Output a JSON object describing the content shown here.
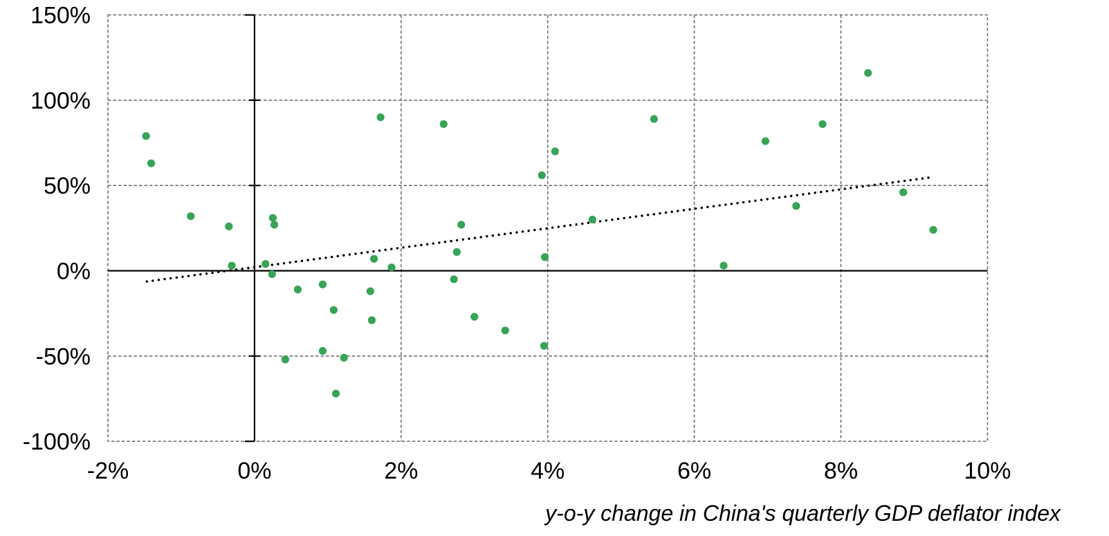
{
  "chart_data": {
    "type": "scatter",
    "title": "",
    "xlabel": "y-o-y change in China's quarterly GDP deflator index",
    "ylabel": "",
    "xlim": [
      -2,
      10
    ],
    "ylim": [
      -100,
      150
    ],
    "x_tick_values": [
      -2,
      0,
      2,
      4,
      6,
      8,
      10
    ],
    "x_tick_labels": [
      "-2%",
      "0%",
      "2%",
      "4%",
      "6%",
      "8%",
      "10%"
    ],
    "y_tick_values": [
      150,
      100,
      50,
      0,
      -50,
      -100
    ],
    "y_tick_labels": [
      "150%",
      "100%",
      "50%",
      "0%",
      "-50%",
      "-100%"
    ],
    "grid": "dashed",
    "legend": "none",
    "marker": "circle",
    "points": [
      [
        -1.48,
        79
      ],
      [
        -1.41,
        63
      ],
      [
        -0.87,
        32
      ],
      [
        -0.35,
        26
      ],
      [
        -0.31,
        3
      ],
      [
        0.15,
        4
      ],
      [
        0.24,
        -2
      ],
      [
        0.25,
        31
      ],
      [
        0.27,
        27
      ],
      [
        0.42,
        -52
      ],
      [
        0.59,
        -11
      ],
      [
        0.93,
        -8
      ],
      [
        0.93,
        -47
      ],
      [
        1.08,
        -23
      ],
      [
        1.11,
        -72
      ],
      [
        1.22,
        -51
      ],
      [
        1.58,
        -12
      ],
      [
        1.6,
        -29
      ],
      [
        1.63,
        7
      ],
      [
        1.72,
        90
      ],
      [
        1.87,
        2
      ],
      [
        2.58,
        86
      ],
      [
        2.72,
        -5
      ],
      [
        2.76,
        11
      ],
      [
        2.82,
        27
      ],
      [
        3.0,
        -27
      ],
      [
        3.42,
        -35
      ],
      [
        3.92,
        56
      ],
      [
        3.95,
        -44
      ],
      [
        3.96,
        8
      ],
      [
        4.1,
        70
      ],
      [
        4.61,
        30
      ],
      [
        5.45,
        89
      ],
      [
        6.4,
        3
      ],
      [
        6.97,
        76
      ],
      [
        7.39,
        38
      ],
      [
        7.75,
        86
      ],
      [
        8.37,
        116
      ],
      [
        8.85,
        46
      ],
      [
        9.26,
        24
      ]
    ],
    "trendline": {
      "style": "dotted",
      "x1": -1.47,
      "y1": -6.3,
      "x2": 9.22,
      "y2": 54.7
    }
  },
  "colors": {
    "point_green": "#37a456",
    "gridline": "#6e6e6e",
    "axis": "#000000",
    "text": "#000000",
    "background": "#ffffff"
  }
}
